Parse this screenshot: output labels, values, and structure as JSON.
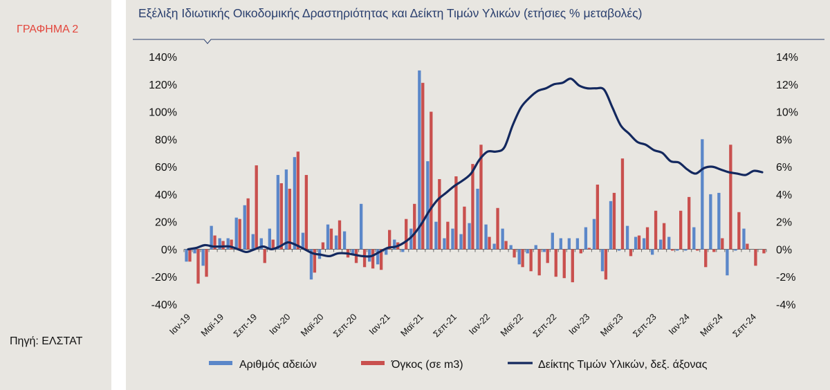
{
  "left": {
    "chart_label": "ΓΡΑΦΗΜΑ 2",
    "source": "Πηγή: ΕΛΣΤΑΤ"
  },
  "colors": {
    "permits": "#5b87c9",
    "volume": "#c9504e",
    "index": "#13285e",
    "title": "#2a3f6e",
    "label": "#e3463c"
  },
  "chart_data": {
    "type": "bar",
    "title": "Εξέλιξη Ιδιωτικής Οικοδομικής Δραστηριότητας και Δείκτη Τιμών Υλικών (ετήσιες % μεταβολές)",
    "xlabel": "",
    "ylabel": "",
    "ylim": [
      -40,
      140
    ],
    "y2lim": [
      -4,
      14
    ],
    "yticks": [
      "140%",
      "120%",
      "100%",
      "80%",
      "60%",
      "40%",
      "20%",
      "0%",
      "-20%",
      "-40%"
    ],
    "y2ticks": [
      "14%",
      "12%",
      "10%",
      "8%",
      "6%",
      "4%",
      "2%",
      "0%",
      "-2%",
      "-4%"
    ],
    "xtick_labels": [
      "Ιαν-19",
      "Μαϊ-19",
      "Σεπ-19",
      "Ιαν-20",
      "Μαϊ-20",
      "Σεπ-20",
      "Ιαν-21",
      "Μαϊ-21",
      "Σεπ-21",
      "Ιαν-22",
      "Μαϊ-22",
      "Σεπ-22",
      "Ιαν-23",
      "Μαϊ-23",
      "Σεπ-23",
      "Ιαν-24",
      "Μαϊ-24",
      "Σεπ-24"
    ],
    "legend_position": "bottom",
    "series": [
      {
        "name": "Αριθμός αδειών",
        "type": "bar",
        "axis": "left",
        "values": [
          -9,
          -3,
          -12,
          17,
          8,
          8,
          23,
          32,
          11,
          8,
          15,
          54,
          58,
          67,
          12,
          -22,
          -7,
          18,
          10,
          13,
          -4,
          33,
          -9,
          -11,
          -4,
          7,
          -2,
          15,
          130,
          64,
          20,
          8,
          15,
          11,
          19,
          44,
          18,
          4,
          15,
          3,
          -11,
          -3,
          3,
          -2,
          12,
          8,
          8,
          8,
          16,
          22,
          -16,
          35,
          -1,
          17,
          9,
          8,
          -4,
          7,
          9,
          -1,
          -1,
          16,
          80,
          40,
          41,
          -19,
          -1,
          15,
          0,
          0
        ],
        "x_start": "2019-01"
      },
      {
        "name": "Όγκος (σε m3)",
        "type": "bar",
        "axis": "left",
        "values": [
          -9,
          -25,
          -20,
          10,
          6,
          7,
          22,
          37,
          61,
          -10,
          7,
          48,
          44,
          71,
          54,
          -17,
          5,
          15,
          21,
          -6,
          -10,
          -13,
          -14,
          -15,
          14,
          5,
          22,
          33,
          121,
          100,
          51,
          20,
          53,
          31,
          62,
          76,
          9,
          30,
          6,
          -6,
          -13,
          -16,
          -19,
          -10,
          -20,
          -21,
          -24,
          -3,
          1,
          47,
          -22,
          41,
          66,
          -5,
          10,
          16,
          28,
          19,
          -1,
          28,
          38,
          -1,
          -13,
          -2,
          8,
          76,
          27,
          4,
          -12,
          -3
        ],
        "x_start": "2019-01"
      },
      {
        "name": "Δείκτης Τιμών Υλικών, δεξ. άξονας",
        "type": "line",
        "axis": "right",
        "values": [
          0,
          0.1,
          0.3,
          0.2,
          0.2,
          0.2,
          0,
          -0.2,
          0,
          0.2,
          0,
          0.2,
          0.5,
          0.3,
          0,
          -0.3,
          -0.4,
          -0.5,
          -0.3,
          -0.3,
          -0.4,
          -0.5,
          -0.5,
          -0.2,
          0.1,
          0.2,
          0.5,
          1.0,
          1.8,
          2.8,
          3.6,
          4.1,
          4.6,
          5.0,
          5.5,
          6.5,
          7.1,
          7.1,
          7.4,
          9.0,
          10.3,
          11.0,
          11.5,
          11.7,
          12.0,
          12.1,
          12.4,
          11.9,
          11.7,
          11.7,
          11.6,
          10.3,
          9.0,
          8.4,
          7.8,
          7.6,
          7.2,
          7.0,
          6.4,
          6.3,
          5.8,
          5.5,
          5.9,
          6.0,
          5.8,
          5.6,
          5.5,
          5.4,
          5.7,
          5.6
        ],
        "x_start": "2019-01"
      }
    ]
  }
}
